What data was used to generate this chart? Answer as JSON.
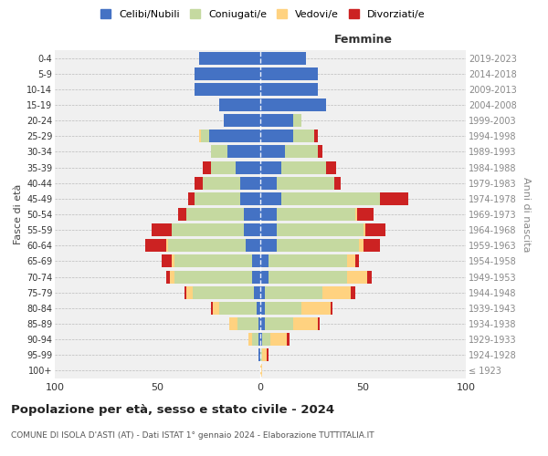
{
  "age_groups": [
    "100+",
    "95-99",
    "90-94",
    "85-89",
    "80-84",
    "75-79",
    "70-74",
    "65-69",
    "60-64",
    "55-59",
    "50-54",
    "45-49",
    "40-44",
    "35-39",
    "30-34",
    "25-29",
    "20-24",
    "15-19",
    "10-14",
    "5-9",
    "0-4"
  ],
  "birth_years": [
    "≤ 1923",
    "1924-1928",
    "1929-1933",
    "1934-1938",
    "1939-1943",
    "1944-1948",
    "1949-1953",
    "1954-1958",
    "1959-1963",
    "1964-1968",
    "1969-1973",
    "1974-1978",
    "1979-1983",
    "1984-1988",
    "1989-1993",
    "1994-1998",
    "1999-2003",
    "2004-2008",
    "2009-2013",
    "2014-2018",
    "2019-2023"
  ],
  "colors": {
    "celibi": "#4472c4",
    "coniugati": "#c5d9a0",
    "vedovi": "#ffd280",
    "divorziati": "#cc2222"
  },
  "males": {
    "celibi": [
      0,
      1,
      1,
      1,
      2,
      3,
      4,
      4,
      7,
      8,
      8,
      10,
      10,
      12,
      16,
      25,
      18,
      20,
      32,
      32,
      30
    ],
    "coniugati": [
      0,
      0,
      3,
      10,
      18,
      30,
      38,
      38,
      38,
      35,
      28,
      22,
      18,
      12,
      8,
      4,
      0,
      0,
      0,
      0,
      0
    ],
    "vedovi": [
      0,
      0,
      2,
      4,
      3,
      3,
      2,
      1,
      1,
      0,
      0,
      0,
      0,
      0,
      0,
      1,
      0,
      0,
      0,
      0,
      0
    ],
    "divorziati": [
      0,
      0,
      0,
      0,
      1,
      1,
      2,
      5,
      10,
      10,
      4,
      3,
      4,
      4,
      0,
      0,
      0,
      0,
      0,
      0,
      0
    ]
  },
  "females": {
    "celibi": [
      0,
      0,
      1,
      2,
      2,
      2,
      4,
      4,
      8,
      8,
      8,
      10,
      8,
      10,
      12,
      16,
      16,
      32,
      28,
      28,
      22
    ],
    "coniugati": [
      0,
      1,
      4,
      14,
      18,
      28,
      38,
      38,
      40,
      42,
      38,
      48,
      28,
      22,
      16,
      10,
      4,
      0,
      0,
      0,
      0
    ],
    "vedovi": [
      1,
      2,
      8,
      12,
      14,
      14,
      10,
      4,
      2,
      1,
      1,
      0,
      0,
      0,
      0,
      0,
      0,
      0,
      0,
      0,
      0
    ],
    "divorziati": [
      0,
      1,
      1,
      1,
      1,
      2,
      2,
      2,
      8,
      10,
      8,
      14,
      3,
      5,
      2,
      2,
      0,
      0,
      0,
      0,
      0
    ]
  },
  "title": "Popolazione per età, sesso e stato civile - 2024",
  "subtitle": "COMUNE DI ISOLA D'ASTI (AT) - Dati ISTAT 1° gennaio 2024 - Elaborazione TUTTITALIA.IT",
  "xlabel_right": "Femmine",
  "ylabel_left": "Fasce di età",
  "ylabel_right": "Anni di nascita",
  "legend_labels": [
    "Celibi/Nubili",
    "Coniugati/e",
    "Vedovi/e",
    "Divorziati/e"
  ],
  "xlim": 100,
  "background_color": "#f0f0f0"
}
